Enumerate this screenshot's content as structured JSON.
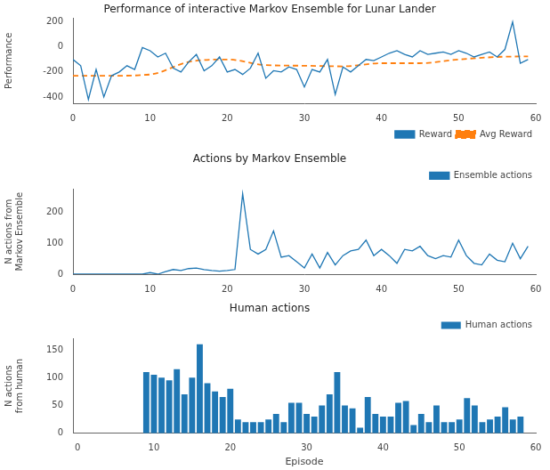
{
  "chart_data": [
    {
      "type": "line",
      "title": "Performance of interactive Markov Ensemble for Lunar Lander",
      "y_label": "Performance",
      "x": [
        0,
        1,
        2,
        3,
        4,
        5,
        6,
        7,
        8,
        9,
        10,
        11,
        12,
        13,
        14,
        15,
        16,
        17,
        18,
        19,
        20,
        21,
        22,
        23,
        24,
        25,
        26,
        27,
        28,
        29,
        30,
        31,
        32,
        33,
        34,
        35,
        36,
        37,
        38,
        39,
        40,
        41,
        42,
        43,
        44,
        45,
        46,
        47,
        48,
        49,
        50,
        51,
        52,
        53,
        54,
        55,
        56,
        57,
        58,
        59
      ],
      "series": [
        {
          "name": "Reward",
          "color": "#1f77b4",
          "values": [
            -100,
            -150,
            -420,
            -180,
            -400,
            -230,
            -200,
            -150,
            -180,
            -5,
            -30,
            -80,
            -50,
            -170,
            -200,
            -120,
            -60,
            -190,
            -150,
            -80,
            -200,
            -180,
            -220,
            -170,
            -50,
            -250,
            -190,
            -200,
            -160,
            -180,
            -320,
            -180,
            -200,
            -100,
            -380,
            -160,
            -200,
            -150,
            -100,
            -110,
            -80,
            -50,
            -30,
            -60,
            -80,
            -30,
            -60,
            -50,
            -40,
            -60,
            -30,
            -50,
            -80,
            -60,
            -40,
            -80,
            -20,
            200,
            -130,
            -100
          ]
        },
        {
          "name": "Avg Reward",
          "color": "#ff7f0e",
          "line_style": "dashed",
          "x": [
            0,
            5,
            10,
            15,
            20,
            25,
            30,
            35,
            40,
            45,
            50,
            55,
            59
          ],
          "values": [
            -230,
            -230,
            -220,
            -120,
            -100,
            -145,
            -150,
            -155,
            -130,
            -130,
            -100,
            -80,
            -75
          ]
        }
      ],
      "xlim": [
        0,
        60
      ],
      "xticks": [
        0,
        10,
        20,
        30,
        40,
        50,
        60
      ],
      "ylim": [
        -450,
        230
      ],
      "yticks": [
        -400,
        -200,
        0,
        200
      ],
      "legend": "lower right",
      "grid": false
    },
    {
      "type": "line",
      "title": "Actions by Markov Ensemble",
      "y_label": "N actions from\nMarkov Ensemble",
      "x": [
        0,
        1,
        2,
        3,
        4,
        5,
        6,
        7,
        8,
        9,
        10,
        11,
        12,
        13,
        14,
        15,
        16,
        17,
        18,
        19,
        20,
        21,
        22,
        23,
        24,
        25,
        26,
        27,
        28,
        29,
        30,
        31,
        32,
        33,
        34,
        35,
        36,
        37,
        38,
        39,
        40,
        41,
        42,
        43,
        44,
        45,
        46,
        47,
        48,
        49,
        50,
        51,
        52,
        53,
        54,
        55,
        56,
        57,
        58,
        59
      ],
      "series": [
        {
          "name": "Ensemble actions",
          "color": "#1f77b4",
          "values": [
            0,
            0,
            0,
            0,
            0,
            0,
            0,
            0,
            0,
            0,
            5,
            0,
            8,
            15,
            12,
            18,
            20,
            15,
            12,
            10,
            12,
            15,
            260,
            80,
            65,
            80,
            140,
            55,
            60,
            40,
            20,
            65,
            20,
            70,
            30,
            60,
            75,
            80,
            110,
            60,
            80,
            60,
            35,
            80,
            75,
            90,
            60,
            50,
            60,
            55,
            110,
            60,
            35,
            30,
            65,
            45,
            40,
            100,
            50,
            90
          ]
        }
      ],
      "xlim": [
        0,
        60
      ],
      "xticks": [
        0,
        10,
        20,
        30,
        40,
        50,
        60
      ],
      "ylim": [
        0,
        275
      ],
      "yticks": [
        0,
        100,
        200
      ],
      "legend": "upper right",
      "grid": false
    },
    {
      "type": "bar",
      "title": "Human actions",
      "x_label": "Episode",
      "y_label": "N actions\nfrom human",
      "x": [
        0,
        1,
        2,
        3,
        4,
        5,
        6,
        7,
        8,
        9,
        10,
        11,
        12,
        13,
        14,
        15,
        16,
        17,
        18,
        19,
        20,
        21,
        22,
        23,
        24,
        25,
        26,
        27,
        28,
        29,
        30,
        31,
        32,
        33,
        34,
        35,
        36,
        37,
        38,
        39,
        40,
        41,
        42,
        43,
        44,
        45,
        46,
        47,
        48,
        49,
        50,
        51,
        52,
        53,
        54,
        55,
        56,
        57,
        58,
        59
      ],
      "series": [
        {
          "name": "Human actions",
          "color": "#1f77b4",
          "values": [
            0,
            0,
            0,
            0,
            0,
            0,
            0,
            0,
            0,
            110,
            105,
            100,
            95,
            115,
            70,
            100,
            160,
            90,
            75,
            65,
            80,
            25,
            20,
            20,
            20,
            25,
            35,
            20,
            55,
            55,
            35,
            30,
            50,
            70,
            110,
            50,
            45,
            10,
            65,
            35,
            30,
            30,
            55,
            58,
            15,
            35,
            20,
            50,
            20,
            20,
            25,
            63,
            50,
            20,
            25,
            30,
            47,
            25,
            30,
            0
          ]
        }
      ],
      "xlim": [
        -0.6,
        60
      ],
      "xticks": [
        0,
        10,
        20,
        30,
        40,
        50,
        60
      ],
      "ylim": [
        0,
        170
      ],
      "yticks": [
        0,
        50,
        100,
        150
      ],
      "legend": "upper right",
      "grid": false
    }
  ]
}
